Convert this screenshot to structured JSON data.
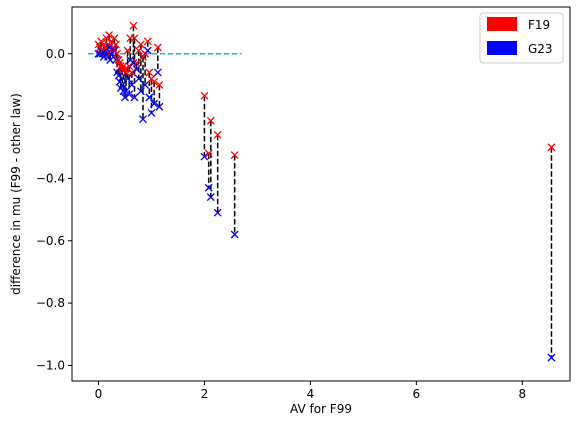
{
  "chart_data": {
    "type": "scatter",
    "xlabel": "AV for F99",
    "ylabel": "difference in mu (F99 - other law)",
    "xlim": [
      -0.5,
      8.9
    ],
    "ylim": [
      -1.05,
      0.15
    ],
    "xticks": [
      0,
      2,
      4,
      6,
      8
    ],
    "yticks": [
      0.0,
      -0.2,
      -0.4,
      -0.6,
      -0.8,
      -1.0
    ],
    "xtick_labels": [
      "0",
      "2",
      "4",
      "6",
      "8"
    ],
    "ytick_labels": [
      "0.0",
      "−0.2",
      "−0.4",
      "−0.6",
      "−0.8",
      "−1.0"
    ],
    "legend_position": "top-right",
    "grid": false,
    "reference_line": {
      "y": 0.0,
      "x_range": [
        -0.2,
        2.7
      ],
      "color": "#17becf",
      "style": "dashed"
    },
    "connector_style": {
      "color": "#000000",
      "style": "dashed"
    },
    "series": [
      {
        "name": "F19",
        "color": "#ff0000",
        "marker": "x"
      },
      {
        "name": "G23",
        "color": "#0000ff",
        "marker": "x"
      }
    ],
    "pairs": [
      {
        "x": 0.0,
        "F19": 0.03,
        "G23": 0.0
      },
      {
        "x": 0.03,
        "F19": 0.02,
        "G23": 0.0
      },
      {
        "x": 0.05,
        "F19": 0.04,
        "G23": 0.01
      },
      {
        "x": 0.08,
        "F19": 0.01,
        "G23": 0.0
      },
      {
        "x": 0.1,
        "F19": 0.03,
        "G23": -0.01
      },
      {
        "x": 0.12,
        "F19": 0.02,
        "G23": 0.0
      },
      {
        "x": 0.15,
        "F19": 0.05,
        "G23": 0.0
      },
      {
        "x": 0.18,
        "F19": 0.03,
        "G23": -0.01
      },
      {
        "x": 0.2,
        "F19": 0.06,
        "G23": 0.02
      },
      {
        "x": 0.22,
        "F19": 0.0,
        "G23": -0.02
      },
      {
        "x": 0.25,
        "F19": 0.04,
        "G23": 0.0
      },
      {
        "x": 0.28,
        "F19": 0.02,
        "G23": -0.01
      },
      {
        "x": 0.3,
        "F19": 0.05,
        "G23": 0.01
      },
      {
        "x": 0.33,
        "F19": 0.03,
        "G23": -0.02
      },
      {
        "x": 0.35,
        "F19": 0.0,
        "G23": -0.06
      },
      {
        "x": 0.38,
        "F19": -0.02,
        "G23": -0.07
      },
      {
        "x": 0.4,
        "F19": -0.03,
        "G23": -0.09
      },
      {
        "x": 0.42,
        "F19": -0.04,
        "G23": -0.11
      },
      {
        "x": 0.45,
        "F19": -0.05,
        "G23": -0.1
      },
      {
        "x": 0.47,
        "F19": -0.04,
        "G23": -0.12
      },
      {
        "x": 0.5,
        "F19": -0.05,
        "G23": -0.14
      },
      {
        "x": 0.52,
        "F19": -0.06,
        "G23": -0.12
      },
      {
        "x": 0.55,
        "F19": 0.01,
        "G23": -0.08
      },
      {
        "x": 0.58,
        "F19": -0.04,
        "G23": -0.13
      },
      {
        "x": 0.6,
        "F19": 0.05,
        "G23": -0.02
      },
      {
        "x": 0.63,
        "F19": -0.06,
        "G23": -0.1
      },
      {
        "x": 0.66,
        "F19": 0.09,
        "G23": -0.03
      },
      {
        "x": 0.68,
        "F19": 0.05,
        "G23": -0.14
      },
      {
        "x": 0.72,
        "F19": -0.03,
        "G23": -0.05
      },
      {
        "x": 0.76,
        "F19": 0.01,
        "G23": -0.08
      },
      {
        "x": 0.8,
        "F19": 0.03,
        "G23": -0.12
      },
      {
        "x": 0.84,
        "F19": -0.01,
        "G23": -0.21
      },
      {
        "x": 0.88,
        "F19": 0.0,
        "G23": -0.1
      },
      {
        "x": 0.93,
        "F19": 0.04,
        "G23": 0.01
      },
      {
        "x": 0.96,
        "F19": -0.06,
        "G23": -0.14
      },
      {
        "x": 1.0,
        "F19": -0.08,
        "G23": -0.19
      },
      {
        "x": 1.05,
        "F19": -0.09,
        "G23": -0.16
      },
      {
        "x": 1.12,
        "F19": 0.02,
        "G23": -0.06
      },
      {
        "x": 1.15,
        "F19": -0.1,
        "G23": -0.17
      },
      {
        "x": 2.0,
        "F19": -0.135,
        "G23": -0.33
      },
      {
        "x": 2.08,
        "F19": -0.32,
        "G23": -0.43
      },
      {
        "x": 2.12,
        "F19": -0.215,
        "G23": -0.46
      },
      {
        "x": 2.25,
        "F19": -0.26,
        "G23": -0.51
      },
      {
        "x": 2.57,
        "F19": -0.325,
        "G23": -0.58
      },
      {
        "x": 8.55,
        "F19": -0.3,
        "G23": -0.975
      }
    ]
  }
}
